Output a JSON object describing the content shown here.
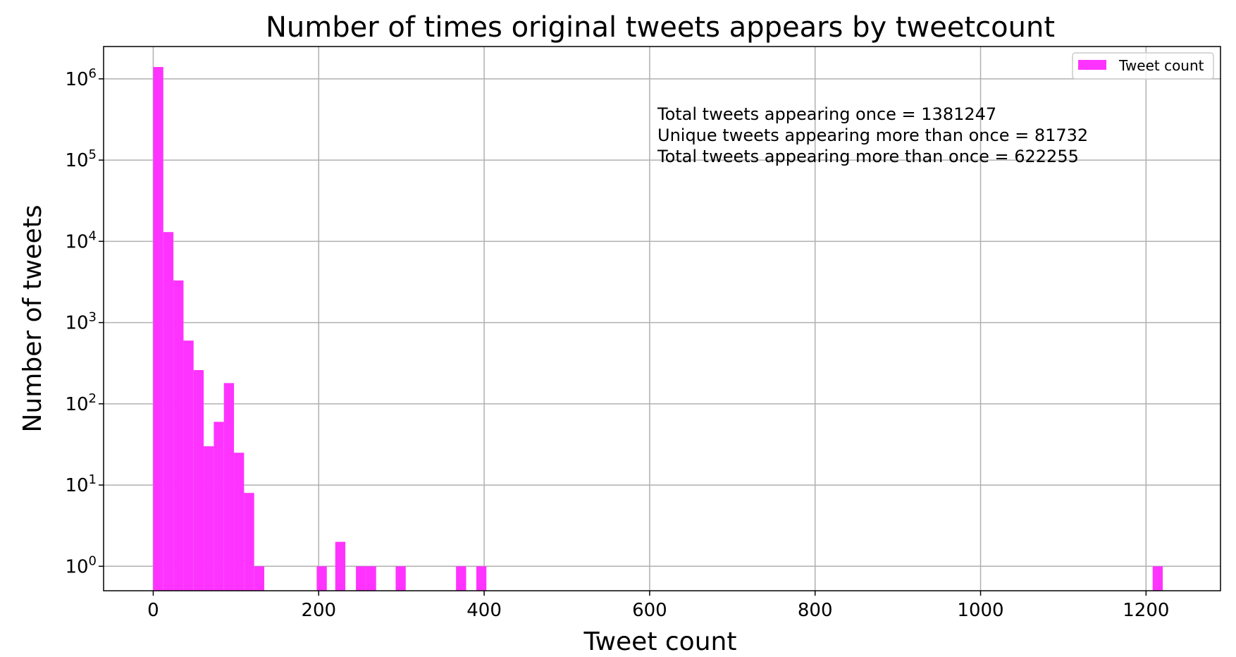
{
  "chart_data": {
    "type": "bar",
    "title": "Number of times original tweets appears by tweetcount",
    "xlabel": "Tweet count",
    "ylabel": "Number of tweets",
    "yscale": "log",
    "xlim": [
      -60,
      1290
    ],
    "ylim": [
      0.5,
      2500000
    ],
    "grid": true,
    "legend": {
      "position": "top-right",
      "entries": [
        "Tweet count"
      ]
    },
    "colors": {
      "bar": "#ff33ff",
      "grid": "#b0b0b0"
    },
    "x_ticks": [
      {
        "value": 0,
        "label": "0"
      },
      {
        "value": 200,
        "label": "200"
      },
      {
        "value": 400,
        "label": "400"
      },
      {
        "value": 600,
        "label": "600"
      },
      {
        "value": 800,
        "label": "800"
      },
      {
        "value": 1000,
        "label": "1000"
      },
      {
        "value": 1200,
        "label": "1200"
      }
    ],
    "y_ticks": [
      {
        "value": 1,
        "base": "10",
        "exp": "0"
      },
      {
        "value": 10,
        "base": "10",
        "exp": "1"
      },
      {
        "value": 100,
        "base": "10",
        "exp": "2"
      },
      {
        "value": 1000,
        "base": "10",
        "exp": "3"
      },
      {
        "value": 10000,
        "base": "10",
        "exp": "4"
      },
      {
        "value": 100000,
        "base": "10",
        "exp": "5"
      },
      {
        "value": 1000000,
        "base": "10",
        "exp": "6"
      }
    ],
    "bins": [
      {
        "x0": 0,
        "x1": 12.2,
        "count": 1400000
      },
      {
        "x0": 12.2,
        "x1": 24.4,
        "count": 13000
      },
      {
        "x0": 24.4,
        "x1": 36.6,
        "count": 3300
      },
      {
        "x0": 36.6,
        "x1": 48.8,
        "count": 600
      },
      {
        "x0": 48.8,
        "x1": 61.0,
        "count": 260
      },
      {
        "x0": 61.0,
        "x1": 73.2,
        "count": 30
      },
      {
        "x0": 73.2,
        "x1": 85.4,
        "count": 60
      },
      {
        "x0": 85.4,
        "x1": 97.6,
        "count": 180
      },
      {
        "x0": 97.6,
        "x1": 109.8,
        "count": 25
      },
      {
        "x0": 109.8,
        "x1": 122.0,
        "count": 8
      },
      {
        "x0": 122.0,
        "x1": 134.2,
        "count": 1
      },
      {
        "x0": 197.6,
        "x1": 209.8,
        "count": 1
      },
      {
        "x0": 220.0,
        "x1": 232.2,
        "count": 2
      },
      {
        "x0": 245.0,
        "x1": 257.2,
        "count": 1
      },
      {
        "x0": 257.2,
        "x1": 269.4,
        "count": 1
      },
      {
        "x0": 293.0,
        "x1": 305.2,
        "count": 1
      },
      {
        "x0": 366.0,
        "x1": 378.2,
        "count": 1
      },
      {
        "x0": 390.5,
        "x1": 402.7,
        "count": 1
      },
      {
        "x0": 1208.0,
        "x1": 1220.2,
        "count": 1
      }
    ],
    "annotations": [
      "Total tweets appearing once = 1381247",
      "Unique tweets appearing more than once = 81732",
      "Total tweets appearing more than once = 622255"
    ]
  }
}
